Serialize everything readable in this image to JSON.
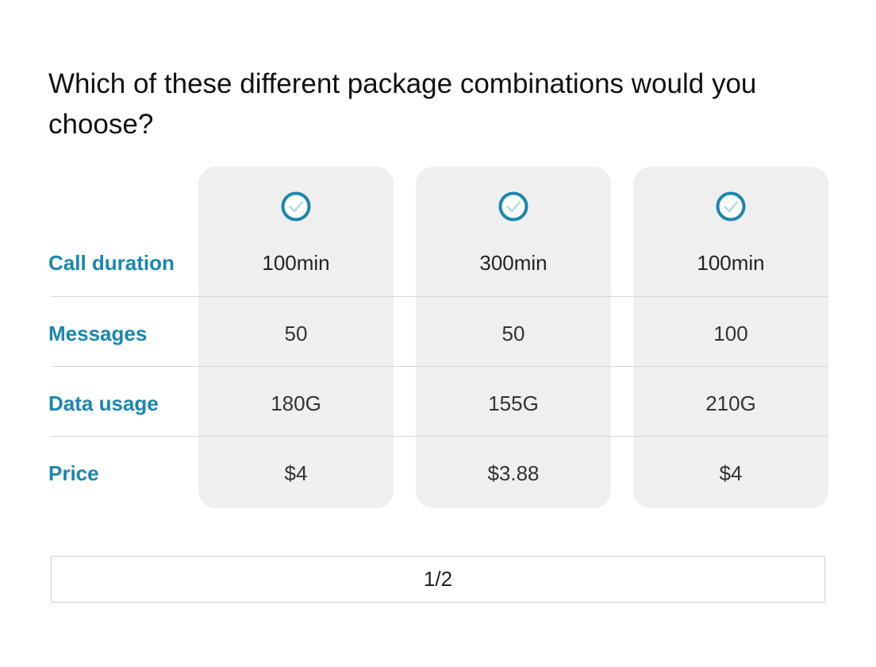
{
  "question": "Which of these different package combinations would you choose?",
  "rows": [
    {
      "label": "Call duration"
    },
    {
      "label": "Messages"
    },
    {
      "label": "Data usage"
    },
    {
      "label": "Price"
    }
  ],
  "options": [
    {
      "call_duration": "100min",
      "messages": "50",
      "data_usage": "180G",
      "price": "$4",
      "check_icon": "check-circle-icon"
    },
    {
      "call_duration": "300min",
      "messages": "50",
      "data_usage": "155G",
      "price": "$3.88",
      "check_icon": "check-circle-icon"
    },
    {
      "call_duration": "100min",
      "messages": "100",
      "data_usage": "210G",
      "price": "$4",
      "check_icon": "check-circle-icon"
    }
  ],
  "pagination": {
    "label": "1/2"
  },
  "colors": {
    "accent": "#1a86ae",
    "card_background": "#efefef",
    "check_ring": "#1a86ae",
    "check_mark": "#b6dbe8"
  }
}
